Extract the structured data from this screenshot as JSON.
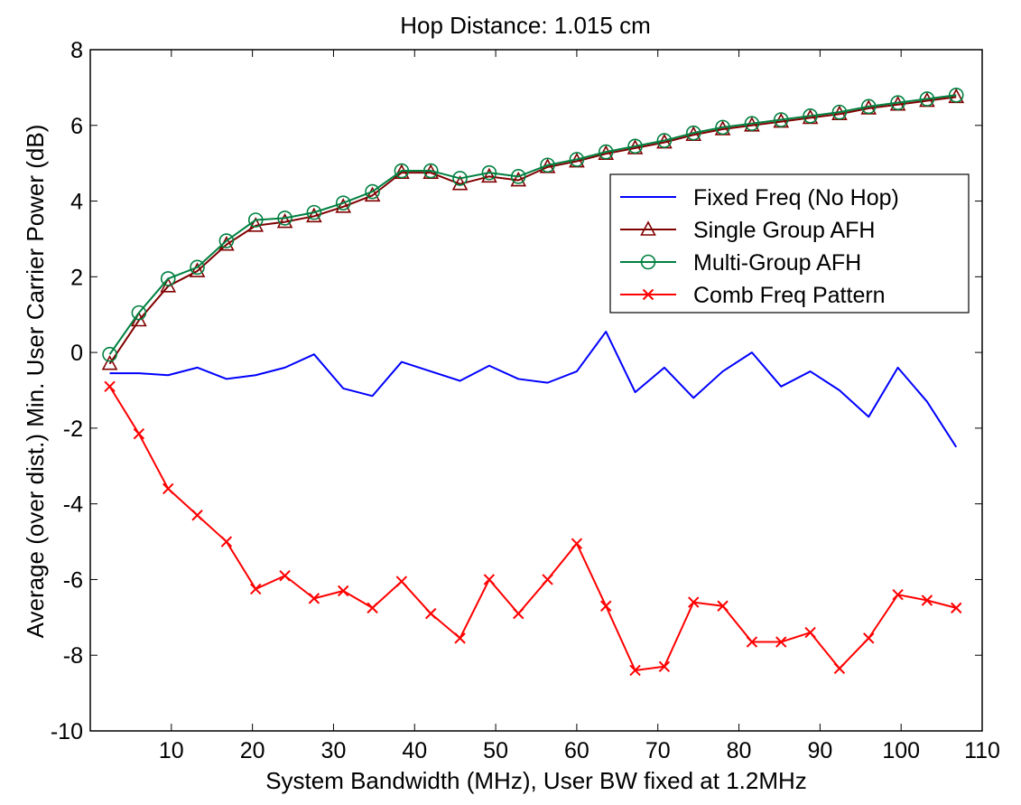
{
  "chart_data": {
    "type": "line",
    "title": "Hop Distance: 1.015 cm",
    "xlabel": "System Bandwidth (MHz), User BW fixed at 1.2MHz",
    "ylabel": "Average (over dist.) Min. User Carrier Power (dB)",
    "xlim": [
      0,
      110
    ],
    "ylim": [
      -10,
      8
    ],
    "xticks": [
      10,
      20,
      30,
      40,
      50,
      60,
      70,
      80,
      90,
      100,
      110
    ],
    "yticks": [
      -10,
      -8,
      -6,
      -4,
      -2,
      0,
      2,
      4,
      6,
      8
    ],
    "grid": false,
    "legend_position": "right",
    "x": [
      2.4,
      6.0,
      9.6,
      13.2,
      16.8,
      20.4,
      24.0,
      27.6,
      31.2,
      34.8,
      38.4,
      42.0,
      45.6,
      49.2,
      52.8,
      56.4,
      60.0,
      63.6,
      67.2,
      70.8,
      74.4,
      78.0,
      81.6,
      85.2,
      88.8,
      92.4,
      96.0,
      99.6,
      103.2,
      106.8
    ],
    "series": [
      {
        "name": "Fixed Freq (No Hop)",
        "color": "#0000ff",
        "marker": "none",
        "values": [
          -0.55,
          -0.55,
          -0.6,
          -0.4,
          -0.7,
          -0.6,
          -0.4,
          -0.05,
          -0.95,
          -1.15,
          -0.25,
          -0.5,
          -0.75,
          -0.35,
          -0.7,
          -0.8,
          -0.5,
          0.55,
          -1.05,
          -0.4,
          -1.2,
          -0.5,
          0.0,
          -0.9,
          -0.5,
          -1.0,
          -1.7,
          -0.4,
          -1.3,
          -2.5
        ]
      },
      {
        "name": "Single Group AFH",
        "color": "#800000",
        "marker": "triangle",
        "values": [
          -0.3,
          0.85,
          1.75,
          2.15,
          2.85,
          3.35,
          3.45,
          3.6,
          3.85,
          4.15,
          4.75,
          4.75,
          4.45,
          4.65,
          4.55,
          4.9,
          5.05,
          5.25,
          5.4,
          5.55,
          5.75,
          5.9,
          6.0,
          6.1,
          6.2,
          6.3,
          6.45,
          6.55,
          6.65,
          6.75
        ]
      },
      {
        "name": "Multi-Group AFH",
        "color": "#008040",
        "marker": "circle",
        "values": [
          -0.05,
          1.05,
          1.95,
          2.25,
          2.95,
          3.5,
          3.55,
          3.7,
          3.95,
          4.25,
          4.8,
          4.8,
          4.6,
          4.75,
          4.65,
          4.95,
          5.1,
          5.3,
          5.45,
          5.6,
          5.8,
          5.95,
          6.05,
          6.15,
          6.25,
          6.35,
          6.5,
          6.6,
          6.7,
          6.8
        ]
      },
      {
        "name": "Comb Freq Pattern",
        "color": "#ff0000",
        "marker": "x",
        "values": [
          -0.9,
          -2.15,
          -3.6,
          -4.3,
          -5.0,
          -6.25,
          -5.9,
          -6.5,
          -6.3,
          -6.75,
          -6.05,
          -6.9,
          -7.55,
          -6.0,
          -6.9,
          -6.0,
          -5.05,
          -6.7,
          -8.4,
          -8.3,
          -6.6,
          -6.7,
          -7.65,
          -7.65,
          -7.4,
          -8.35,
          -7.55,
          -6.4,
          -6.55,
          -6.75
        ]
      }
    ]
  }
}
